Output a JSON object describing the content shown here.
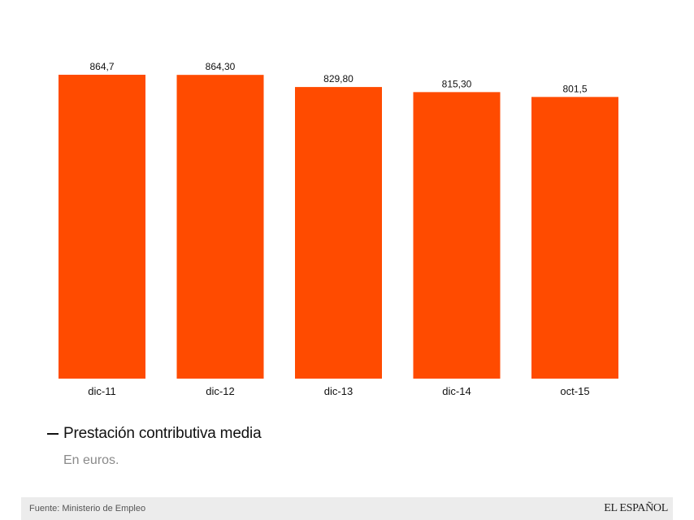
{
  "chart_data": {
    "type": "bar",
    "categories": [
      "dic-11",
      "dic-12",
      "dic-13",
      "dic-14",
      "oct-15"
    ],
    "values": [
      864.7,
      864.3,
      829.8,
      815.3,
      801.5
    ],
    "value_labels": [
      "864,7",
      "864,30",
      "829,80",
      "815,30",
      "801,5"
    ],
    "title": "Prestación contributiva media",
    "subtitle": "En euros.",
    "ylim": [
      0,
      864.7
    ],
    "grid": false,
    "bar_color": "#FF4B00"
  },
  "footer": {
    "source": "Fuente: Ministerio de Empleo",
    "brand": "EL ESPAÑOL"
  },
  "colors": {
    "bar": "#FF4B00",
    "text": "#111111",
    "subtitle": "#8a8a8a",
    "footer_bg": "#ececec"
  }
}
